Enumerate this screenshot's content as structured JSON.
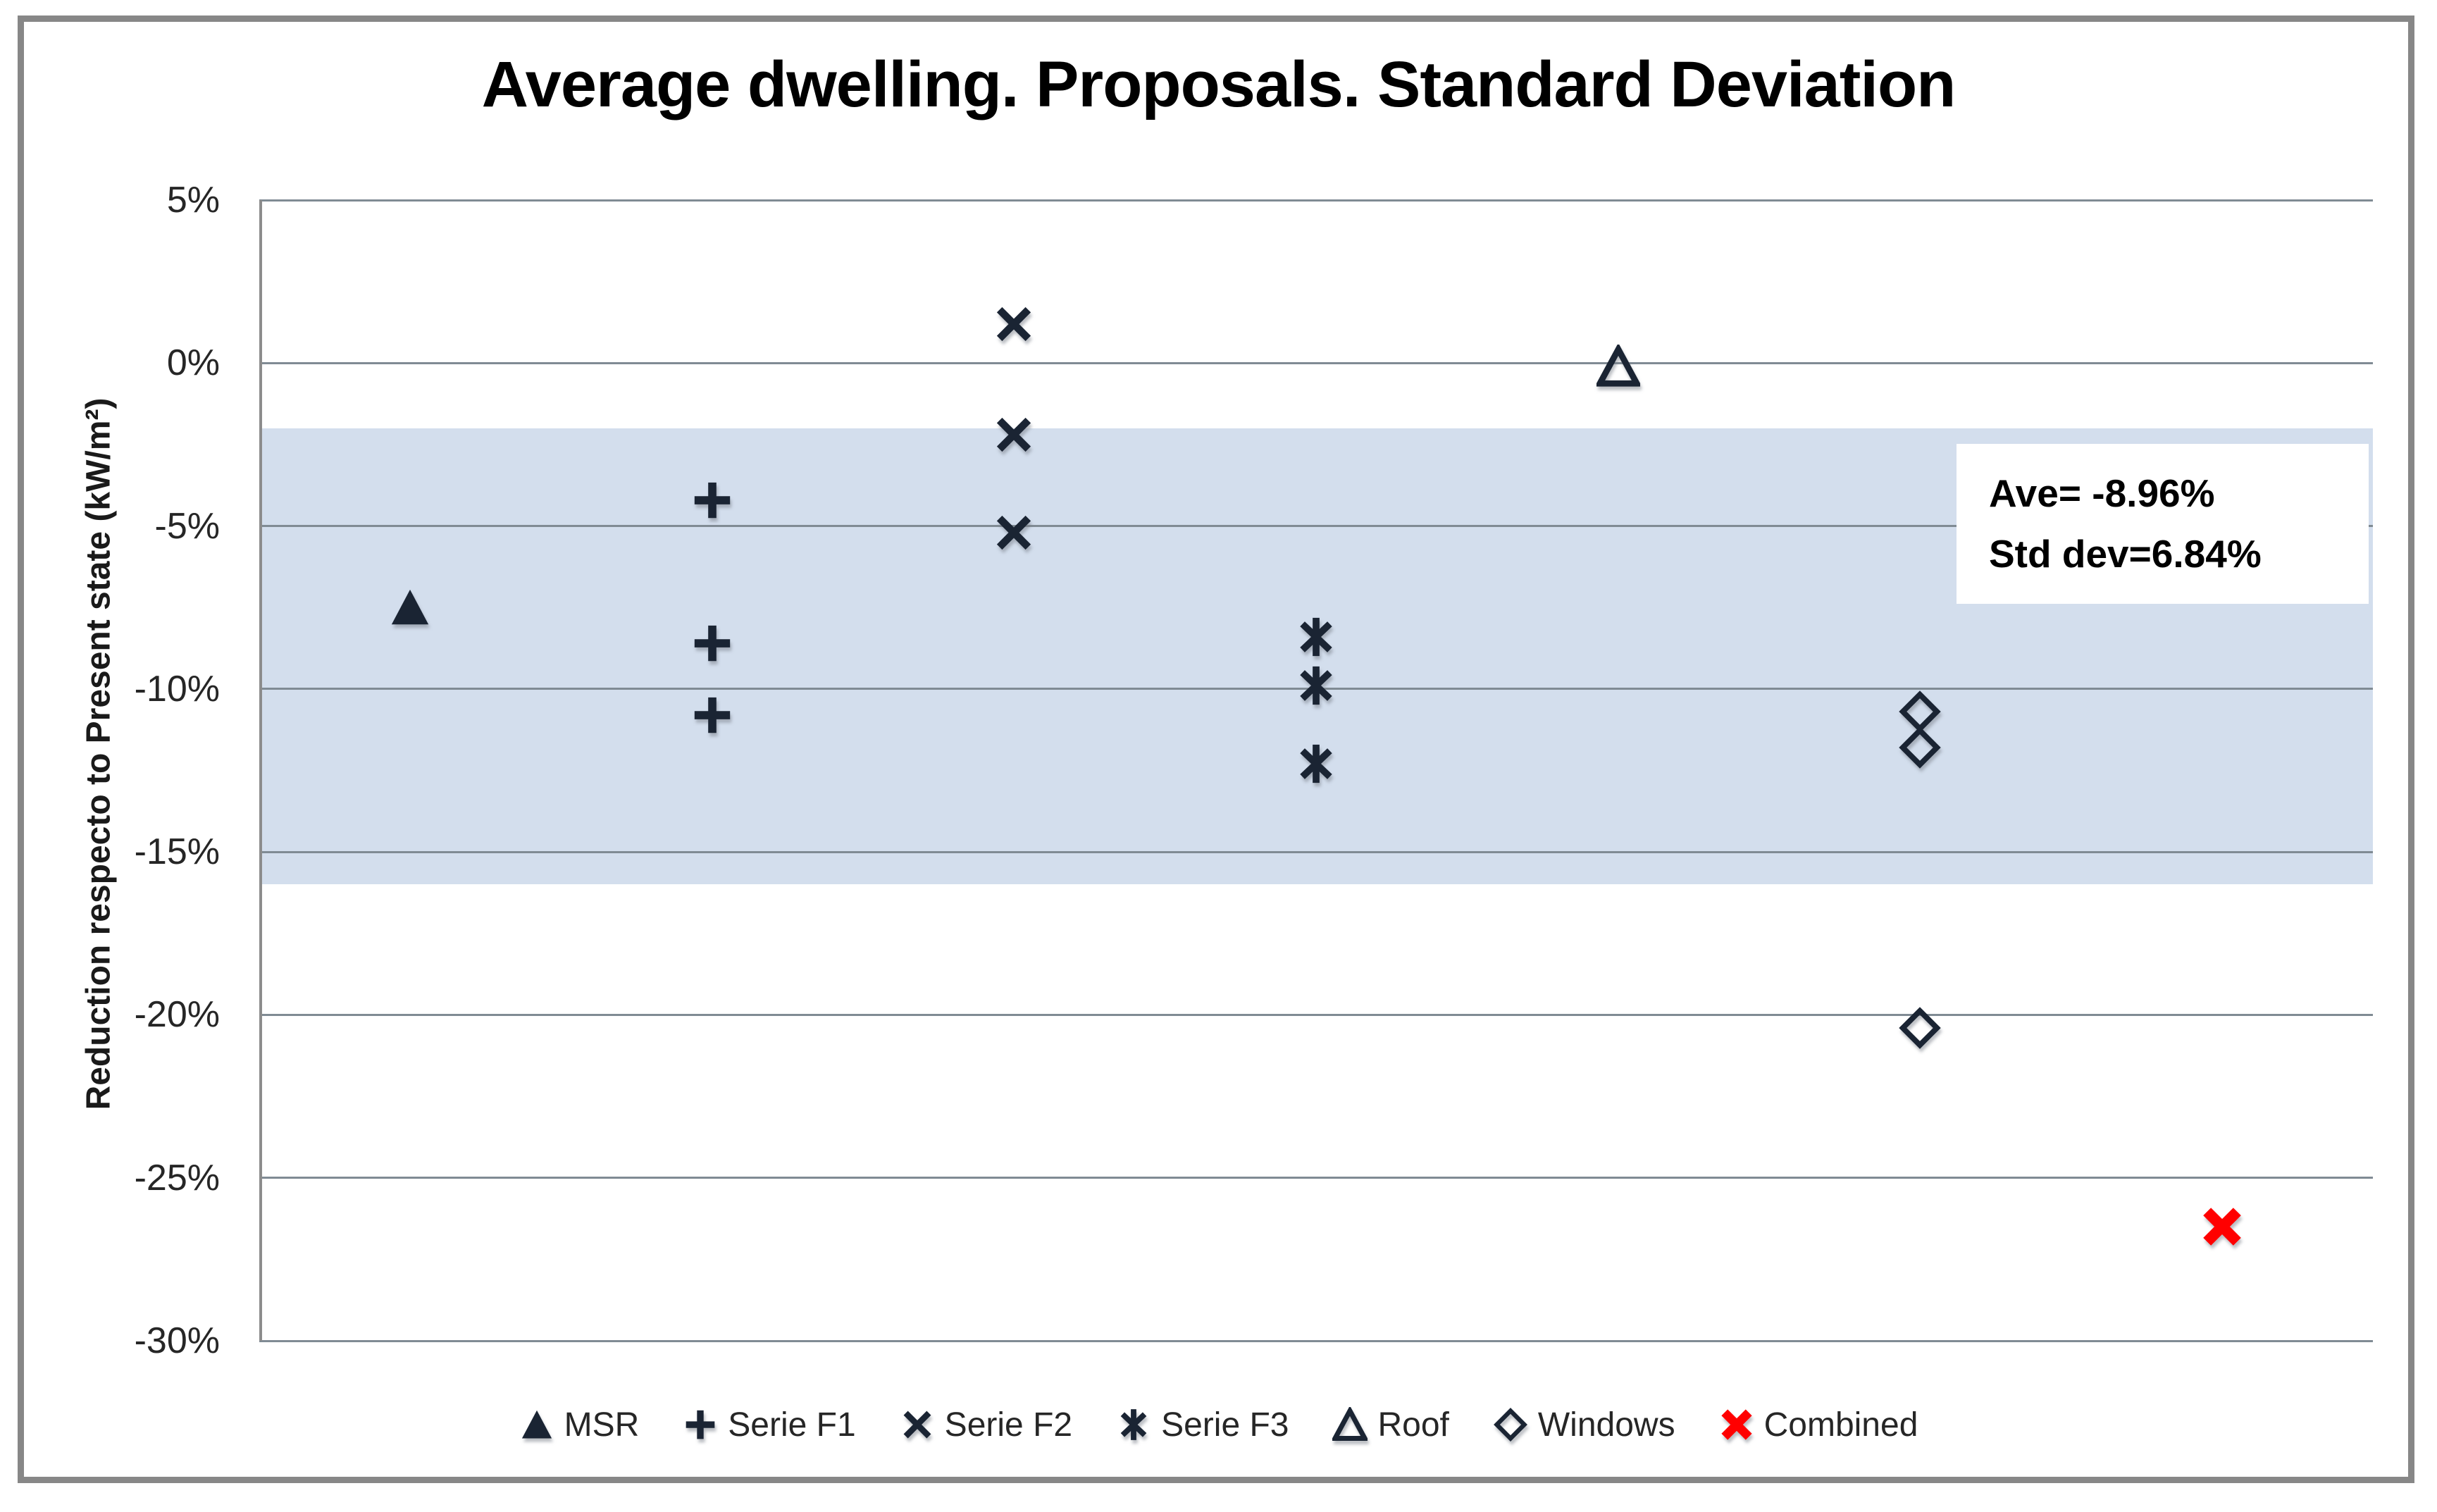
{
  "chart_data": {
    "type": "scatter",
    "title": "Average dwelling. Proposals. Standard Deviation",
    "ylabel": "Reduction respecto to Present state (kW/m²)",
    "xlabel": "",
    "ylim": [
      -30,
      5
    ],
    "yticks": [
      {
        "label": "5%",
        "value": 5
      },
      {
        "label": "0%",
        "value": 0
      },
      {
        "label": "-5%",
        "value": -5
      },
      {
        "label": "-10%",
        "value": -10
      },
      {
        "label": "-15%",
        "value": -15
      },
      {
        "label": "-20%",
        "value": -20
      },
      {
        "label": "-25%",
        "value": -25
      },
      {
        "label": "-30%",
        "value": -30
      }
    ],
    "grid": "horizontal",
    "legend_position": "bottom",
    "band": {
      "y_from": -2.0,
      "y_to": -16.0,
      "color": "#D3DEED"
    },
    "categories_count": 7,
    "series": [
      {
        "name": "MSR",
        "marker": "triangle-filled",
        "color": "#1A2433",
        "x": 1,
        "values": [
          -7.5
        ]
      },
      {
        "name": "Serie F1",
        "marker": "plus",
        "color": "#1A2433",
        "x": 2,
        "values": [
          -4.2,
          -8.6,
          -10.8
        ]
      },
      {
        "name": "Serie F2",
        "marker": "x",
        "color": "#1A2433",
        "x": 3,
        "values": [
          1.2,
          -2.2,
          -5.2
        ]
      },
      {
        "name": "Serie F3",
        "marker": "asterisk",
        "color": "#1A2433",
        "x": 4,
        "values": [
          -8.4,
          -9.9,
          -12.3
        ]
      },
      {
        "name": "Roof",
        "marker": "triangle-open",
        "color": "#1A2433",
        "x": 5,
        "values": [
          -0.1
        ]
      },
      {
        "name": "Windows",
        "marker": "diamond-open",
        "color": "#1A2433",
        "x": 6,
        "values": [
          -10.7,
          -11.8,
          -20.4
        ]
      },
      {
        "name": "Combined",
        "marker": "x-bold",
        "color": "#FF0000",
        "x": 7,
        "values": [
          -26.5
        ]
      }
    ],
    "annotation": {
      "line1": "Ave= -8.96%",
      "line2": "Std dev=6.84%"
    }
  },
  "colors": {
    "marker_dark": "#1A2433",
    "combined_red": "#FF0000",
    "band": "#D3DEED",
    "gridline": "#808B94",
    "axis_line": "#8C8C8C",
    "chart_border": "#878787"
  }
}
